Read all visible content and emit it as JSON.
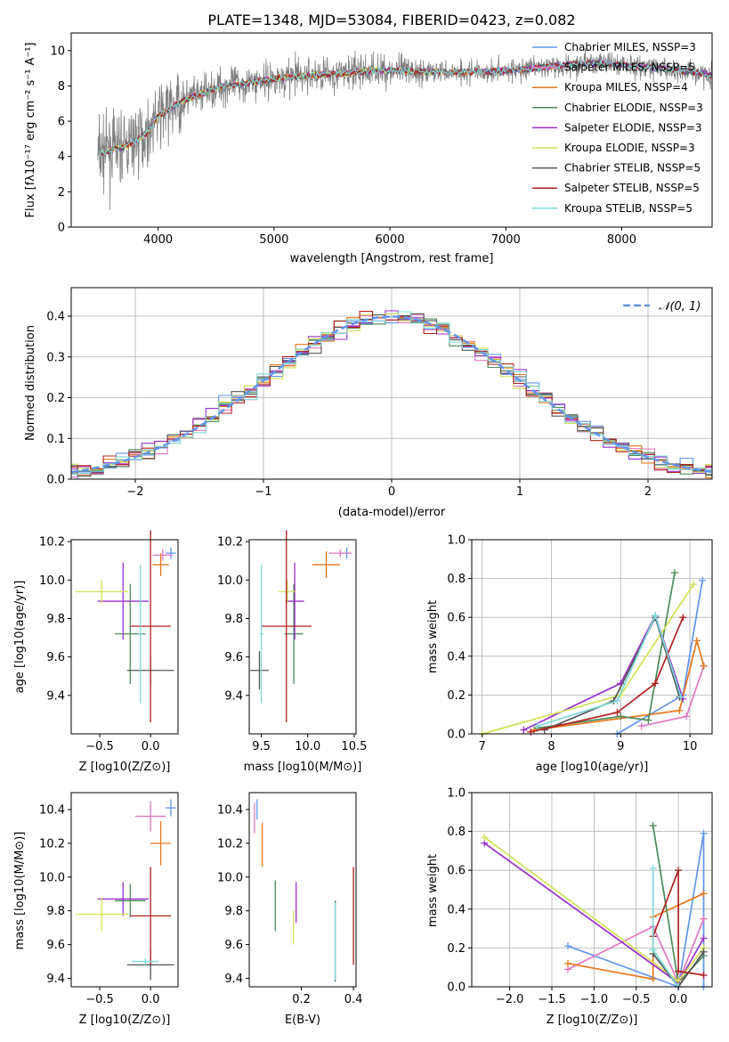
{
  "chart_data": [
    {
      "type": "line",
      "title": "PLATE=1348, MJD=53084, FIBERID=0423, z=0.082",
      "xlabel": "wavelength [Angstrom, rest frame]",
      "ylabel": "Flux [fλ10⁻¹⁷ erg cm⁻² s⁻¹ A⁻¹]",
      "xlim": [
        3250,
        8780
      ],
      "ylim": [
        0,
        11
      ],
      "xticks": [
        4000,
        5000,
        6000,
        7000,
        8000
      ],
      "yticks": [
        0,
        2,
        4,
        6,
        8,
        10
      ],
      "legend_position": "right",
      "series": [
        {
          "name": "Chabrier MILES, NSSP=3",
          "color": "#6495ed"
        },
        {
          "name": "Salpeter MILES, NSSP=5",
          "color": "#e377c2"
        },
        {
          "name": "Kroupa MILES, NSSP=4",
          "color": "#e6781e"
        },
        {
          "name": "Chabrier ELODIE, NSSP=3",
          "color": "#4f8a5c"
        },
        {
          "name": "Salpeter ELODIE, NSSP=3",
          "color": "#9932cc"
        },
        {
          "name": "Kroupa ELODIE, NSSP=3",
          "color": "#d4e157"
        },
        {
          "name": "Chabrier STELIB, NSSP=5",
          "color": "#555555"
        },
        {
          "name": "Salpeter STELIB, NSSP=5",
          "color": "#b22222"
        },
        {
          "name": "Kroupa STELIB, NSSP=5",
          "color": "#7fd8d8"
        }
      ],
      "continuum": {
        "x": [
          3500,
          3600,
          3700,
          3800,
          3900,
          4000,
          4100,
          4200,
          4300,
          4400,
          4500,
          4700,
          5000,
          5300,
          5600,
          5900,
          6200,
          6500,
          6800,
          7100,
          7400,
          7700,
          8000,
          8300,
          8600,
          8780
        ],
        "y": [
          4.2,
          4.4,
          4.5,
          4.9,
          5.3,
          6.3,
          6.7,
          7.1,
          7.4,
          7.6,
          7.9,
          8.1,
          8.4,
          8.6,
          8.7,
          8.9,
          8.8,
          8.8,
          8.8,
          8.9,
          9.1,
          9.3,
          9.2,
          9.0,
          8.8,
          8.6
        ]
      }
    },
    {
      "type": "bar",
      "xlabel": "(data-model)/error",
      "ylabel": "Normed distribution",
      "xlim": [
        -2.5,
        2.5
      ],
      "ylim": [
        0,
        0.47
      ],
      "xticks": [
        -2,
        -1,
        0,
        1,
        2
      ],
      "yticks": [
        0.0,
        0.1,
        0.2,
        0.3,
        0.4
      ],
      "reference_curve": {
        "name": "𝒩(0, 1)",
        "color": "#6495ed"
      },
      "bin_width": 0.1
    },
    {
      "type": "scatter",
      "xlabel": "Z [log10(Z/Z⊙)]",
      "ylabel": "age  [log10(age/yr)]",
      "xlim": [
        -0.78,
        0.27
      ],
      "ylim": [
        9.2,
        10.21
      ],
      "xticks": [
        -0.5,
        0.0
      ],
      "yticks": [
        9.4,
        9.6,
        9.8,
        10.0,
        10.2
      ],
      "points": [
        {
          "series": "Chabrier MILES",
          "x": 0.2,
          "y": 10.14,
          "xerr": 0.05,
          "yerr": 0.03
        },
        {
          "series": "Salpeter MILES",
          "x": 0.12,
          "y": 10.13,
          "xerr": 0.1,
          "yerr": 0.03
        },
        {
          "series": "Kroupa MILES",
          "x": 0.1,
          "y": 10.08,
          "xerr": 0.08,
          "yerr": 0.06
        },
        {
          "series": "Chabrier ELODIE",
          "x": -0.2,
          "y": 9.72,
          "xerr": 0.15,
          "yerr": 0.26
        },
        {
          "series": "Salpeter ELODIE",
          "x": -0.27,
          "y": 9.89,
          "xerr": 0.25,
          "yerr": 0.2
        },
        {
          "series": "Kroupa ELODIE",
          "x": -0.48,
          "y": 9.94,
          "xerr": 0.26,
          "yerr": 0.06
        },
        {
          "series": "Chabrier STELIB",
          "x": 0.0,
          "y": 9.53,
          "xerr": 0.23,
          "yerr": 0.08
        },
        {
          "series": "Salpeter STELIB",
          "x": 0.0,
          "y": 9.76,
          "xerr": 0.2,
          "yerr": 0.5
        },
        {
          "series": "Kroupa STELIB",
          "x": -0.1,
          "y": 9.72,
          "xerr": 0.02,
          "yerr": 0.36
        }
      ]
    },
    {
      "type": "scatter",
      "xlabel": "mass [log10(M/M⊙)]",
      "xlim": [
        9.37,
        10.52
      ],
      "ylim": [
        9.2,
        10.21
      ],
      "xticks": [
        9.5,
        10.0,
        10.5
      ],
      "yticks": [
        9.4,
        9.6,
        9.8,
        10.0,
        10.2
      ],
      "points": [
        {
          "series": "Chabrier MILES",
          "x": 10.42,
          "y": 10.14,
          "xerr": 0.05,
          "yerr": 0.03
        },
        {
          "series": "Salpeter MILES",
          "x": 10.35,
          "y": 10.14,
          "xerr": 0.12,
          "yerr": 0.02
        },
        {
          "series": "Kroupa MILES",
          "x": 10.2,
          "y": 10.08,
          "xerr": 0.15,
          "yerr": 0.07
        },
        {
          "series": "Chabrier ELODIE",
          "x": 9.85,
          "y": 9.72,
          "xerr": 0.1,
          "yerr": 0.26
        },
        {
          "series": "Salpeter ELODIE",
          "x": 9.86,
          "y": 9.89,
          "xerr": 0.1,
          "yerr": 0.2
        },
        {
          "series": "Kroupa ELODIE",
          "x": 9.78,
          "y": 9.94,
          "xerr": 0.1,
          "yerr": 0.06
        },
        {
          "series": "Chabrier STELIB",
          "x": 9.48,
          "y": 9.53,
          "xerr": 0.1,
          "yerr": 0.1
        },
        {
          "series": "Salpeter STELIB",
          "x": 9.77,
          "y": 9.76,
          "xerr": 0.27,
          "yerr": 0.5
        },
        {
          "series": "Kroupa STELIB",
          "x": 9.5,
          "y": 9.72,
          "xerr": 0.02,
          "yerr": 0.36
        }
      ]
    },
    {
      "type": "line",
      "xlabel": "age  [log10(age/yr)]",
      "ylabel": "mass weight",
      "xlim": [
        6.85,
        10.32
      ],
      "ylim": [
        0,
        1
      ],
      "xticks": [
        7,
        8,
        9,
        10
      ],
      "yticks": [
        0.0,
        0.2,
        0.4,
        0.6,
        0.8,
        1.0
      ]
    },
    {
      "type": "scatter",
      "xlabel": "Z [log10(Z/Z⊙)]",
      "ylabel": "mass [log10(M/M⊙)]",
      "xlim": [
        -0.78,
        0.27
      ],
      "ylim": [
        9.35,
        10.5
      ],
      "xticks": [
        -0.5,
        0.0
      ],
      "yticks": [
        9.4,
        9.6,
        9.8,
        10.0,
        10.2,
        10.4
      ],
      "points": [
        {
          "series": "Chabrier MILES",
          "x": 0.2,
          "y": 10.41,
          "xerr": 0.05,
          "yerr": 0.05
        },
        {
          "series": "Salpeter MILES",
          "x": 0.0,
          "y": 10.36,
          "xerr": 0.15,
          "yerr": 0.09
        },
        {
          "series": "Kroupa MILES",
          "x": 0.1,
          "y": 10.2,
          "xerr": 0.1,
          "yerr": 0.13
        },
        {
          "series": "Chabrier ELODIE",
          "x": -0.2,
          "y": 9.86,
          "xerr": 0.15,
          "yerr": 0.1
        },
        {
          "series": "Salpeter ELODIE",
          "x": -0.27,
          "y": 9.87,
          "xerr": 0.25,
          "yerr": 0.1
        },
        {
          "series": "Kroupa ELODIE",
          "x": -0.48,
          "y": 9.78,
          "xerr": 0.26,
          "yerr": 0.1
        },
        {
          "series": "Chabrier STELIB",
          "x": 0.0,
          "y": 9.48,
          "xerr": 0.23,
          "yerr": 0.09
        },
        {
          "series": "Salpeter STELIB",
          "x": 0.0,
          "y": 9.77,
          "xerr": 0.2,
          "yerr": 0.29
        },
        {
          "series": "Kroupa STELIB",
          "x": -0.05,
          "y": 9.5,
          "xerr": 0.13,
          "yerr": 0.02
        }
      ]
    },
    {
      "type": "scatter",
      "xlabel": "E(B-V)",
      "xlim": [
        0.0,
        0.41
      ],
      "ylim": [
        9.35,
        10.5
      ],
      "xticks": [
        0.2,
        0.4
      ],
      "yticks": [
        9.4,
        9.6,
        9.8,
        10.0,
        10.2,
        10.4
      ],
      "points": [
        {
          "series": "Chabrier MILES",
          "x": 0.03,
          "y": 10.4,
          "xerr": 0.0,
          "yerr": 0.06
        },
        {
          "series": "Salpeter MILES",
          "x": 0.02,
          "y": 10.35,
          "xerr": 0.0,
          "yerr": 0.09
        },
        {
          "series": "Kroupa MILES",
          "x": 0.05,
          "y": 10.19,
          "xerr": 0.0,
          "yerr": 0.13
        },
        {
          "series": "Chabrier ELODIE",
          "x": 0.1,
          "y": 9.83,
          "xerr": 0.0,
          "yerr": 0.15
        },
        {
          "series": "Salpeter ELODIE",
          "x": 0.18,
          "y": 9.85,
          "xerr": 0.0,
          "yerr": 0.12
        },
        {
          "series": "Kroupa ELODIE",
          "x": 0.17,
          "y": 9.7,
          "xerr": 0.0,
          "yerr": 0.1
        },
        {
          "series": "Chabrier STELIB",
          "x": 0.33,
          "y": 9.62,
          "xerr": 0.0,
          "yerr": 0.24
        },
        {
          "series": "Salpeter STELIB",
          "x": 0.4,
          "y": 9.77,
          "xerr": 0.0,
          "yerr": 0.29
        },
        {
          "series": "Kroupa STELIB",
          "x": 0.33,
          "y": 9.62,
          "xerr": 0.0,
          "yerr": 0.23
        }
      ]
    },
    {
      "type": "line",
      "xlabel": "Z [log10(Z/Z⊙)]",
      "ylabel": "mass weight",
      "xlim": [
        -2.45,
        0.4
      ],
      "ylim": [
        0,
        1
      ],
      "xticks": [
        -2.0,
        -1.5,
        -1.0,
        -0.5,
        0.0
      ],
      "yticks": [
        0.0,
        0.2,
        0.4,
        0.6,
        0.8,
        1.0
      ]
    }
  ]
}
